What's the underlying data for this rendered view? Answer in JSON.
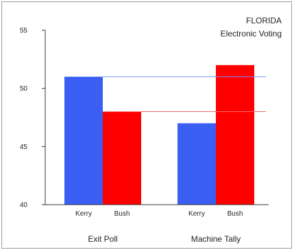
{
  "header": {
    "title_line1": "FLORIDA",
    "title_line2": "Electronic Voting"
  },
  "chart_data": {
    "type": "bar",
    "title": "FLORIDA\nElectronic Voting",
    "xlabel": "",
    "ylabel": "",
    "ylim": [
      40,
      55
    ],
    "yticks": [
      40,
      45,
      50,
      55
    ],
    "grid": false,
    "groups": [
      {
        "label": "Exit Poll",
        "bars": [
          {
            "label": "Kerry",
            "value": 51,
            "color": "#3a5ff2"
          },
          {
            "label": "Bush",
            "value": 48,
            "color": "#ff0000"
          }
        ]
      },
      {
        "label": "Machine Tally",
        "bars": [
          {
            "label": "Kerry",
            "value": 47,
            "color": "#3a5ff2"
          },
          {
            "label": "Bush",
            "value": 52,
            "color": "#ff0000"
          }
        ]
      }
    ],
    "reference_lines": [
      {
        "value": 51,
        "color": "#6f8ff5"
      },
      {
        "value": 48,
        "color": "#f06a6a"
      }
    ]
  }
}
